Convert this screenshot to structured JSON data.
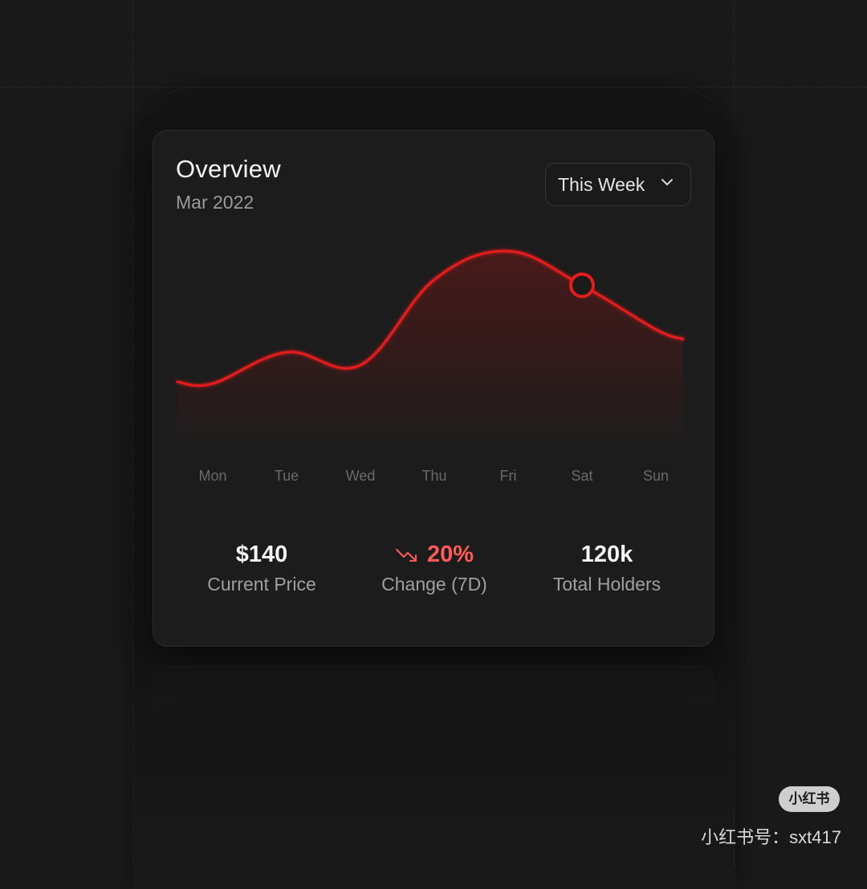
{
  "card": {
    "title": "Overview",
    "subtitle": "Mar 2022",
    "period_select": {
      "selected": "This Week",
      "icon": "chevron-down-icon"
    }
  },
  "chart_data": {
    "type": "area",
    "x": [
      "Mon",
      "Tue",
      "Wed",
      "Thu",
      "Fri",
      "Sat",
      "Sun"
    ],
    "series": [
      {
        "values": [
          1,
          0.78,
          0.87,
          0.27,
          0.07,
          0.31,
          0.62
        ]
      }
    ],
    "highlighted_point": "Sat",
    "line_color": "#e51c1c",
    "grid": false,
    "y_axis_labels": false
  },
  "stats": [
    {
      "value": "$140",
      "label": "Current Price"
    },
    {
      "value": "20%",
      "label": "Change (7D)",
      "trend": "down",
      "color": "#ff5a5a",
      "icon": "trend-down-icon"
    },
    {
      "value": "120k",
      "label": "Total Holders"
    }
  ],
  "watermark": {
    "badge": "小红书",
    "handle": "小红书号：sxt417"
  }
}
